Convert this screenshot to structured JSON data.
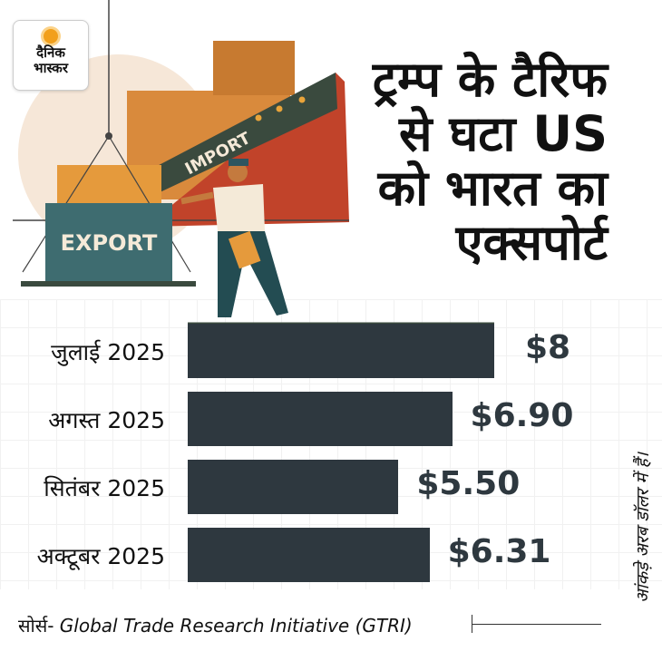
{
  "logo": {
    "line1": "दैनिक",
    "line2": "भास्कर",
    "brand_color": "#f2a01c"
  },
  "title_lines": [
    "ट्रम्प के टैरिफ",
    "से घटा US",
    "को भारत का",
    "एक्सपोर्ट"
  ],
  "illustration": {
    "container_label": "EXPORT",
    "ship_label": "IMPORT"
  },
  "chart_data": {
    "type": "bar",
    "orientation": "horizontal",
    "categories": [
      "जुलाई 2025",
      "अगस्त 2025",
      "सितंबर 2025",
      "अक्टूबर 2025"
    ],
    "values": [
      8,
      6.9,
      5.5,
      6.31
    ],
    "data_labels": [
      "$8",
      "$6.90",
      "$5.50",
      "$6.31"
    ],
    "xlim": [
      0,
      8
    ],
    "bar_color": "#2e383f",
    "grid": true,
    "unit_note": "आंकड़े अरब डॉलर में हैं।"
  },
  "source": {
    "prefix": "सोर्स-",
    "text": "Global Trade Research Initiative (GTRI)"
  }
}
